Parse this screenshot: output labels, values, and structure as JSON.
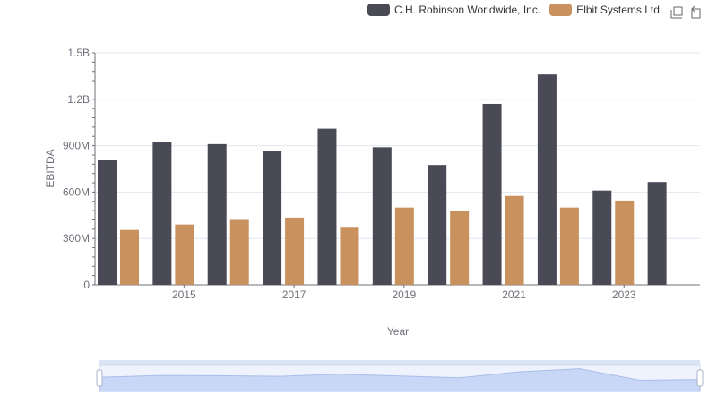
{
  "legend": {
    "series_0": "C.H. Robinson Worldwide, Inc.",
    "series_1": "Elbit Systems Ltd."
  },
  "toolbar": {
    "zoom_icon": "zoom-icon",
    "restore_icon": "restore-icon"
  },
  "colors": {
    "series_0": "#4a4a56",
    "series_1": "#c8915e",
    "grid": "#e0e6f1",
    "slider": "#dbe4f7"
  },
  "chart_data": {
    "type": "bar",
    "categories": [
      "2014",
      "2015",
      "2016",
      "2017",
      "2018",
      "2019",
      "2020",
      "2021",
      "2022",
      "2023",
      "2024"
    ],
    "x_tick_labels": [
      "2015",
      "2017",
      "2019",
      "2021",
      "2023"
    ],
    "series": [
      {
        "name": "C.H. Robinson Worldwide, Inc.",
        "values": [
          805,
          925,
          910,
          865,
          1010,
          890,
          775,
          1170,
          1360,
          610,
          665
        ]
      },
      {
        "name": "Elbit Systems Ltd.",
        "values": [
          355,
          390,
          420,
          435,
          375,
          500,
          480,
          575,
          500,
          545,
          null
        ]
      }
    ],
    "y_tick_labels": [
      "0",
      "300M",
      "600M",
      "900M",
      "1.2B",
      "1.5B"
    ],
    "y_unit": "millions",
    "ylim": [
      0,
      1500
    ],
    "xlabel": "Year",
    "ylabel": "EBITDA",
    "grid": true,
    "legend_position": "top-right"
  }
}
